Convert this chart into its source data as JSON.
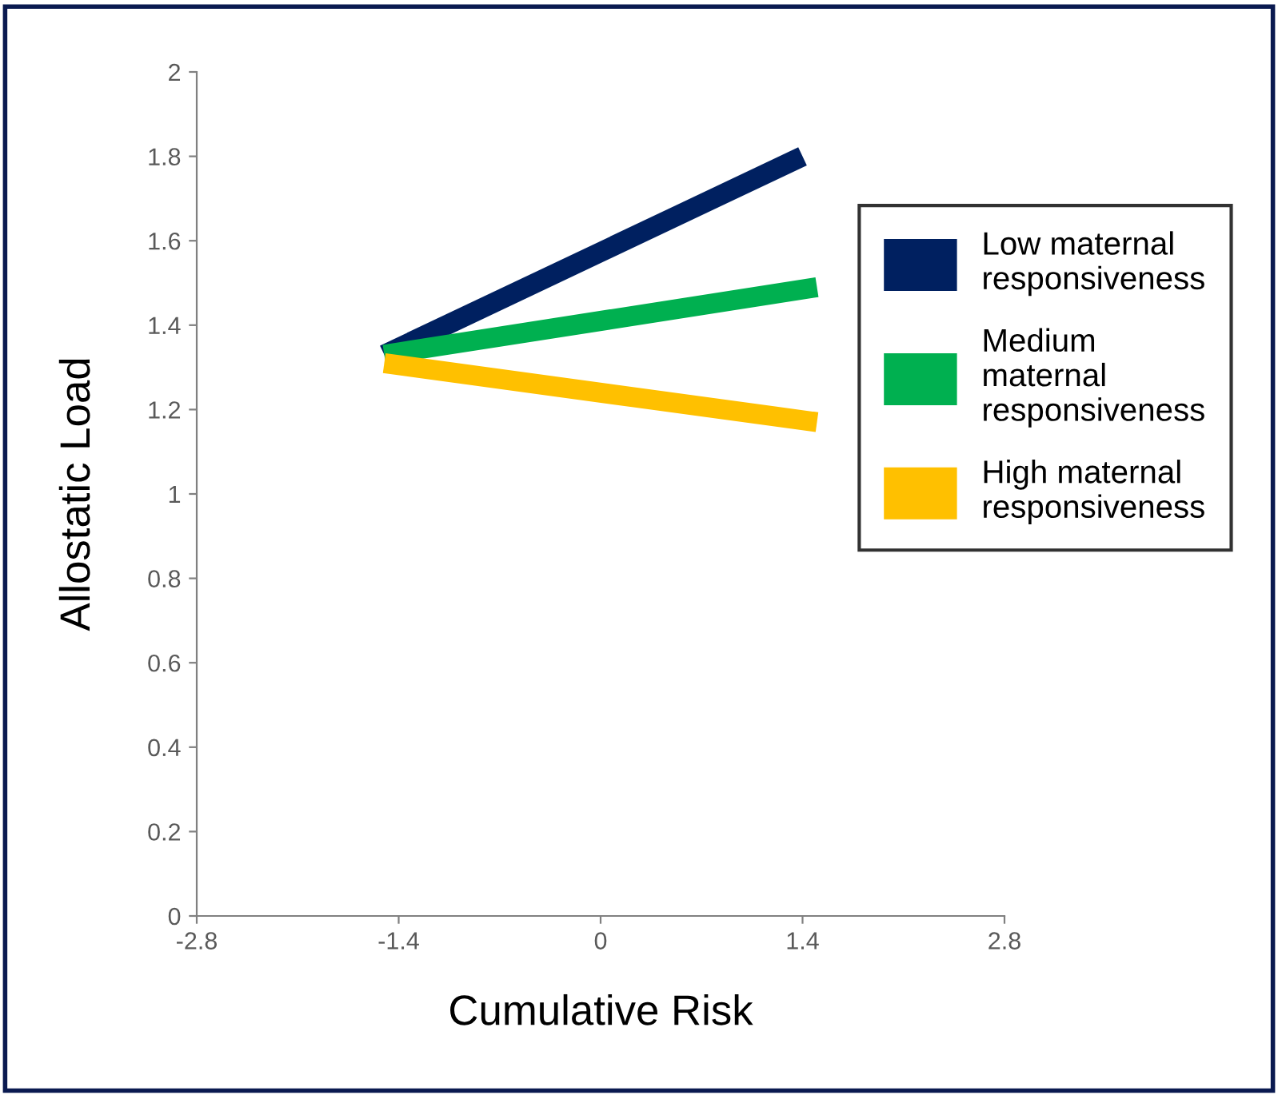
{
  "chart_data": {
    "type": "line",
    "xlabel": "Cumulative Risk",
    "ylabel": "Allostatic Load",
    "xlim": [
      -2.8,
      2.8
    ],
    "xticks": [
      -2.8,
      -1.4,
      0,
      1.4,
      2.8
    ],
    "ylim": [
      0,
      2
    ],
    "yticks": [
      0,
      0.2,
      0.4,
      0.6,
      0.8,
      1,
      1.2,
      1.4,
      1.6,
      1.8,
      2
    ],
    "grid": false,
    "legend": "right",
    "marker": "none",
    "line_style": "solid",
    "series": [
      {
        "name": "Low maternal\nresponsiveness",
        "color": "#002060",
        "x": [
          -1.5,
          1.4
        ],
        "values": [
          1.33,
          1.8
        ]
      },
      {
        "name": "Medium\nmaternal\nresponsiveness",
        "color": "#00b050",
        "x": [
          -1.5,
          1.5
        ],
        "values": [
          1.33,
          1.49
        ]
      },
      {
        "name": "High maternal\nresponsiveness",
        "color": "#ffc000",
        "x": [
          -1.5,
          1.5
        ],
        "values": [
          1.31,
          1.17
        ]
      }
    ]
  }
}
